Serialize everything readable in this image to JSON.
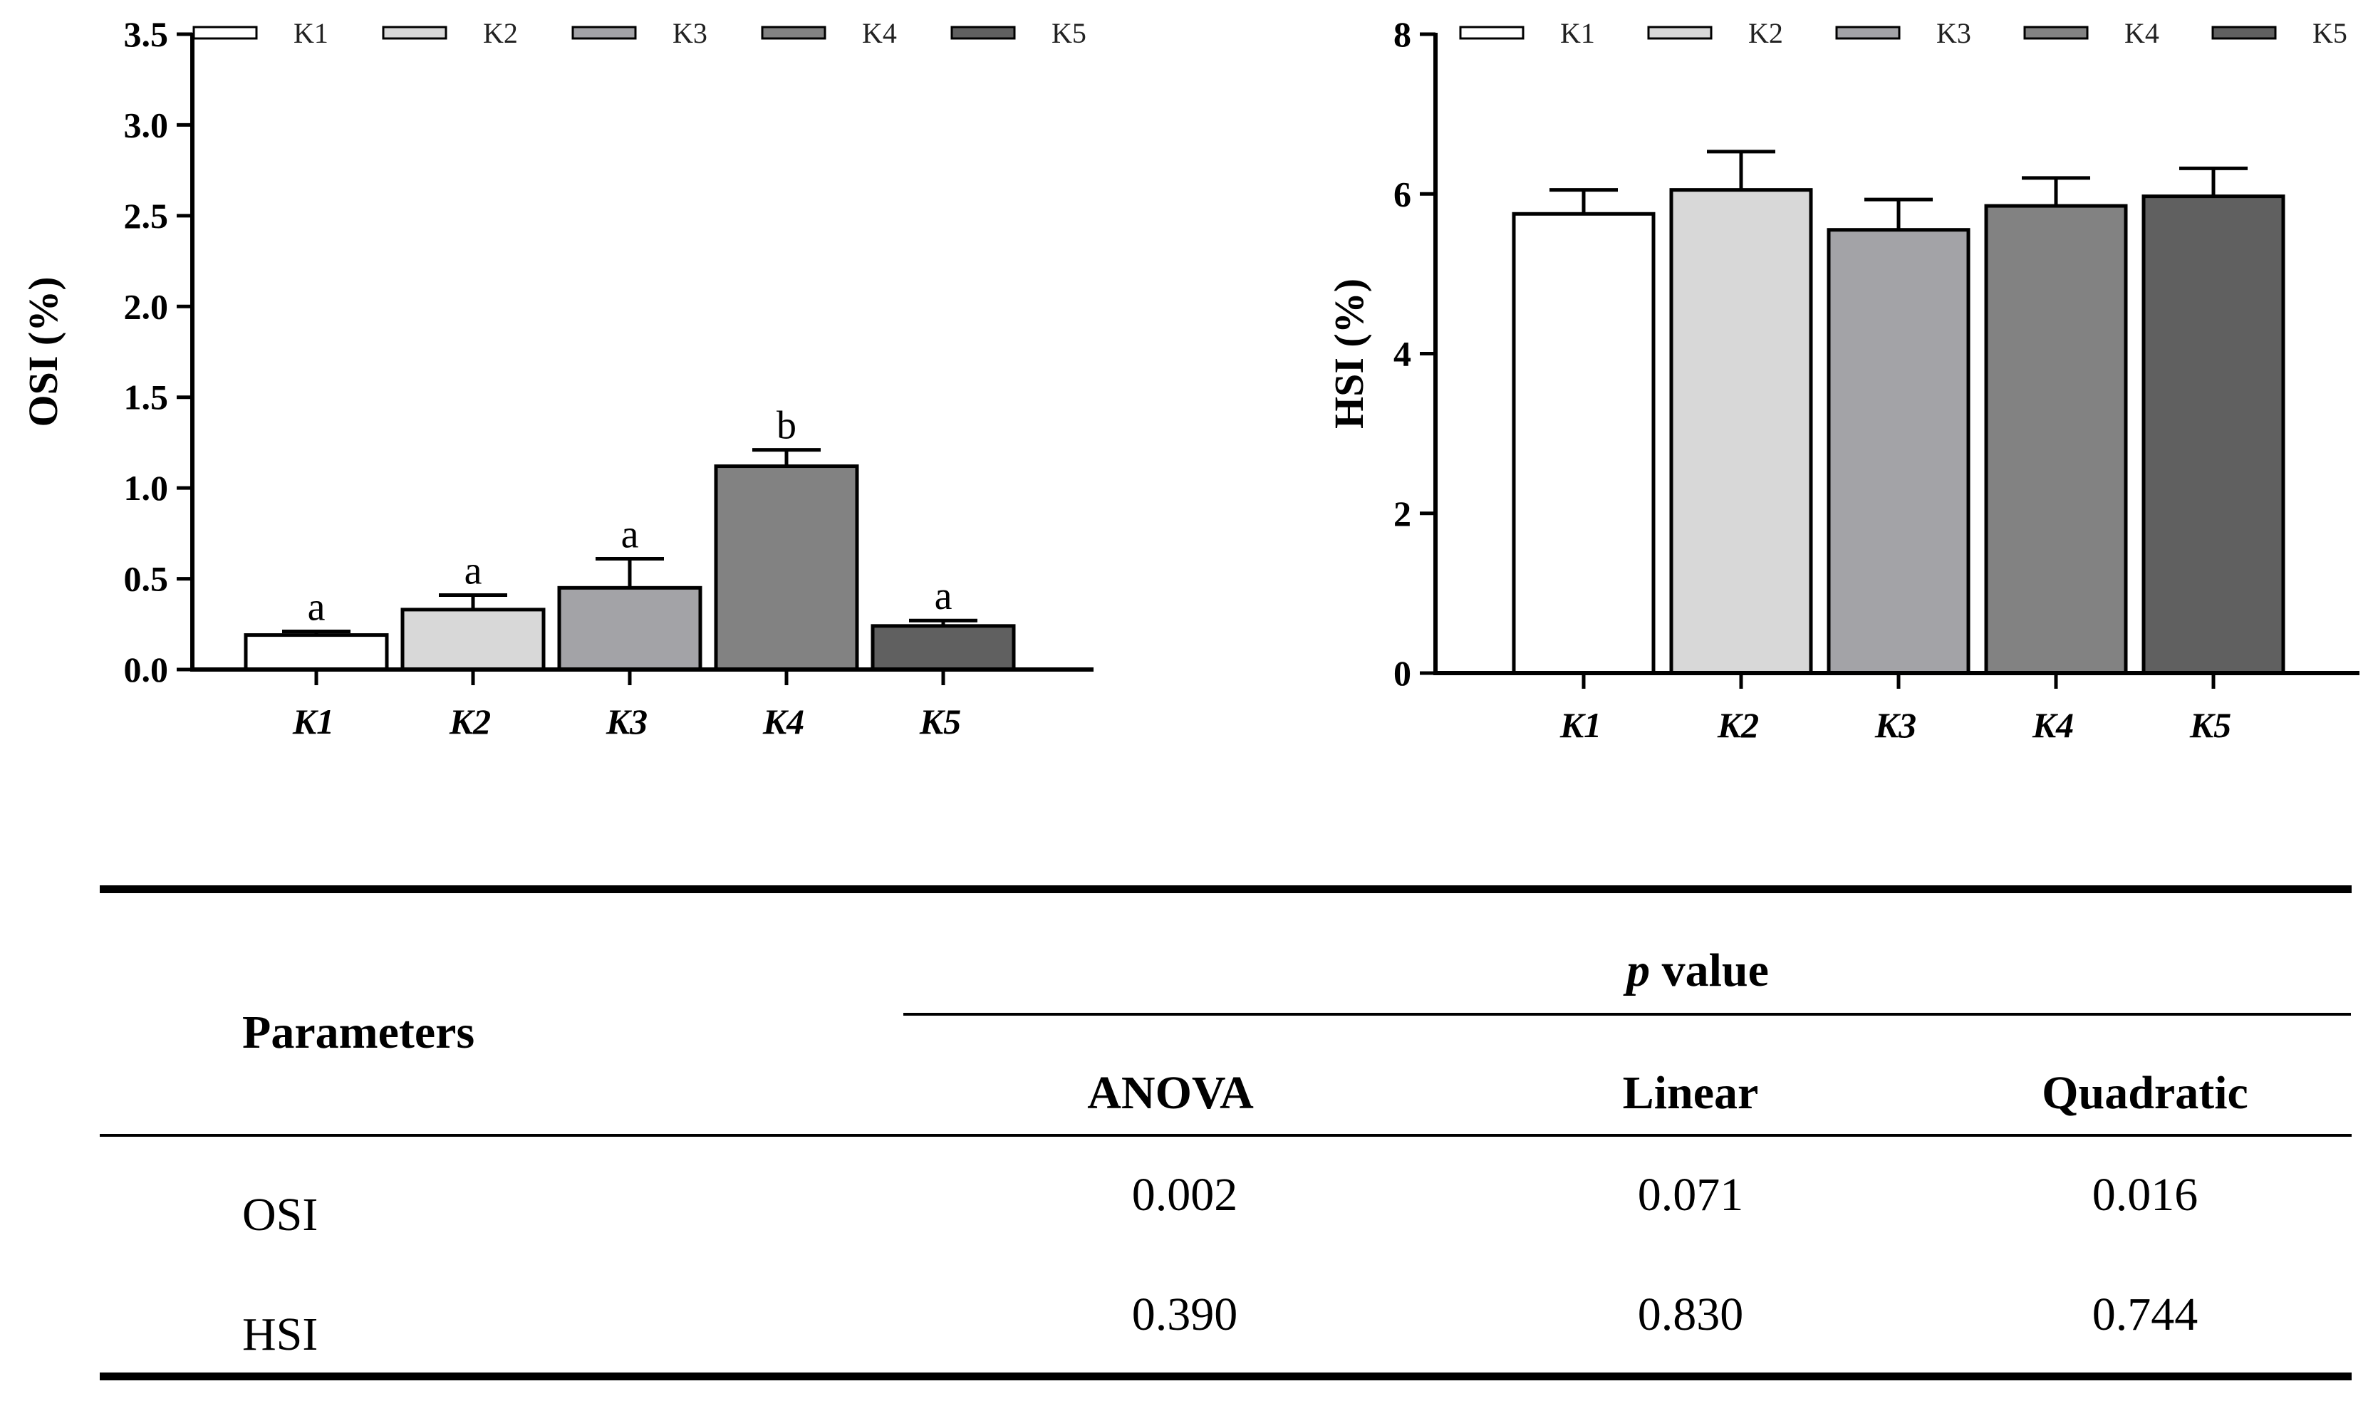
{
  "chart_data": [
    {
      "type": "bar",
      "ylabel": "OSI (%)",
      "xlabel": "",
      "categories": [
        "K1",
        "K2",
        "K3",
        "K4",
        "K5"
      ],
      "values": [
        0.19,
        0.33,
        0.45,
        1.12,
        0.24
      ],
      "errors": [
        0.02,
        0.08,
        0.16,
        0.09,
        0.03
      ],
      "significance": [
        "a",
        "a",
        "a",
        "b",
        "a"
      ],
      "ylim": [
        0,
        3.5
      ],
      "yticks": [
        "0.0",
        "0.5",
        "1.0",
        "1.5",
        "2.0",
        "2.5",
        "3.0",
        "3.5"
      ],
      "legend": [
        "K1",
        "K2",
        "K3",
        "K4",
        "K5"
      ],
      "legend_position": "top"
    },
    {
      "type": "bar",
      "ylabel": "HSI (%)",
      "xlabel": "",
      "categories": [
        "K1",
        "K2",
        "K3",
        "K4",
        "K5"
      ],
      "values": [
        5.75,
        6.05,
        5.55,
        5.85,
        5.97
      ],
      "errors": [
        0.3,
        0.48,
        0.38,
        0.35,
        0.35
      ],
      "significance": [],
      "ylim": [
        0,
        8
      ],
      "yticks": [
        "0",
        "2",
        "4",
        "6",
        "8"
      ],
      "legend": [
        "K1",
        "K2",
        "K3",
        "K4",
        "K5"
      ],
      "legend_position": "top"
    }
  ],
  "colors": {
    "K1": "#ffffff",
    "K2": "#d8d8d8",
    "K3": "#a3a3a7",
    "K4": "#828282",
    "K5": "#606060"
  },
  "table": {
    "header_col": "Parameters",
    "group_header_prefix": "p",
    "group_header_suffix": " value",
    "columns": [
      "ANOVA",
      "Linear",
      "Quadratic"
    ],
    "rows": [
      {
        "label": "OSI",
        "values": [
          "0.002",
          "0.071",
          "0.016"
        ]
      },
      {
        "label": "HSI",
        "values": [
          "0.390",
          "0.830",
          "0.744"
        ]
      }
    ]
  }
}
